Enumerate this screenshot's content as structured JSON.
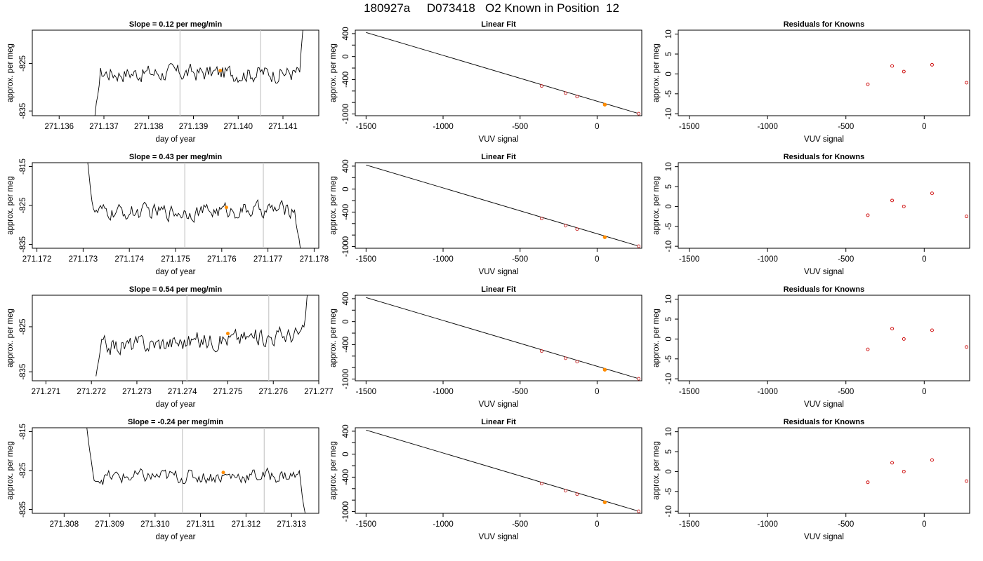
{
  "title": "180927a     D073418   O2 Known in Position  12",
  "colors": {
    "trace": "#000000",
    "known_marker": "#ff8c00",
    "fit_point": "#c82828",
    "resid_point": "#cc0000",
    "event_line": "#c8c8c8",
    "axes": "#000000"
  },
  "labels": {
    "ts_xlabel": "day of year",
    "ylabel": "approx. per meg",
    "fit_title": "Linear Fit",
    "resid_title": "Residuals for Knowns",
    "vuv_xlabel": "VUV signal"
  },
  "chart_data": [
    {
      "type": "line",
      "panel": "timeseries",
      "row": 1,
      "title": "Slope =  0.12  per meg/min",
      "xlabel": "day of year",
      "ylabel": "approx. per meg",
      "xlim": [
        271.1354,
        271.1418
      ],
      "ylim": [
        -836,
        -818
      ],
      "xticks": [
        271.136,
        271.137,
        271.138,
        271.139,
        271.14,
        271.141
      ],
      "xtick_labels": [
        "271.136",
        "271.137",
        "271.138",
        "271.139",
        "271.140",
        "271.141"
      ],
      "yticks": [
        -825,
        -835
      ],
      "ytick_labels": [
        "-825",
        "-835"
      ],
      "trace": {
        "start": 271.1368,
        "end": 271.1415,
        "base": -827,
        "noise": 1.6,
        "trend": 0.0,
        "head": -836,
        "tail": -812
      },
      "vlines": [
        271.1387,
        271.1405
      ],
      "known_point": [
        271.1396,
        -826.5
      ]
    },
    {
      "type": "line",
      "panel": "timeseries",
      "row": 2,
      "title": "Slope =  0.43  per meg/min",
      "xlabel": "day of year",
      "ylabel": "approx. per meg",
      "xlim": [
        271.1719,
        271.1781
      ],
      "ylim": [
        -836,
        -814
      ],
      "xticks": [
        271.172,
        271.173,
        271.174,
        271.175,
        271.176,
        271.177,
        271.178
      ],
      "xtick_labels": [
        "271.172",
        "271.173",
        "271.174",
        "271.175",
        "271.176",
        "271.177",
        "271.178"
      ],
      "yticks": [
        -815,
        -825,
        -835
      ],
      "ytick_labels": [
        "-815",
        "-825",
        "-835"
      ],
      "trace": {
        "start": 271.1731,
        "end": 271.1777,
        "base": -826.5,
        "noise": 1.8,
        "trend": 1.0,
        "head": -814,
        "tail": -836
      },
      "vlines": [
        271.1752,
        271.1769
      ],
      "known_point": [
        271.1761,
        -825.5
      ]
    },
    {
      "type": "line",
      "panel": "timeseries",
      "row": 3,
      "title": "Slope =  0.54  per meg/min",
      "xlabel": "day of year",
      "ylabel": "approx. per meg",
      "xlim": [
        271.2707,
        271.277
      ],
      "ylim": [
        -837,
        -818
      ],
      "xticks": [
        271.271,
        271.272,
        271.273,
        271.274,
        271.275,
        271.276,
        271.277
      ],
      "xtick_labels": [
        "271.271",
        "271.272",
        "271.273",
        "271.274",
        "271.275",
        "271.276",
        "271.277"
      ],
      "yticks": [
        -825,
        -835
      ],
      "ytick_labels": [
        "-825",
        "-835"
      ],
      "trace": {
        "start": 271.2721,
        "end": 271.2768,
        "base": -828,
        "noise": 1.8,
        "trend": 3.0,
        "head": -836,
        "tail": -812
      },
      "vlines": [
        271.2741,
        271.2759
      ],
      "known_point": [
        271.275,
        -826.5
      ]
    },
    {
      "type": "line",
      "panel": "timeseries",
      "row": 4,
      "title": "Slope =  -0.24  per meg/min",
      "xlabel": "day of year",
      "ylabel": "approx. per meg",
      "xlim": [
        271.3073,
        271.3136
      ],
      "ylim": [
        -836,
        -814
      ],
      "xticks": [
        271.308,
        271.309,
        271.31,
        271.311,
        271.312,
        271.313
      ],
      "xtick_labels": [
        "271.308",
        "271.309",
        "271.310",
        "271.311",
        "271.312",
        "271.313"
      ],
      "yticks": [
        -815,
        -825,
        -835
      ],
      "ytick_labels": [
        "-815",
        "-825",
        "-835"
      ],
      "trace": {
        "start": 271.3085,
        "end": 271.3133,
        "base": -826.5,
        "noise": 1.6,
        "trend": 0.5,
        "head": -814,
        "tail": -836
      },
      "vlines": [
        271.3106,
        271.3124
      ],
      "known_point": [
        271.3115,
        -825.5
      ]
    },
    {
      "type": "scatter",
      "panel": "fit",
      "row": 1,
      "title": "Linear Fit",
      "xlabel": "VUV signal",
      "ylabel": "approx. per meg",
      "xlim": [
        -1570,
        290
      ],
      "ylim": [
        -1030,
        460
      ],
      "xticks": [
        -1500,
        -1000,
        -500,
        0
      ],
      "yticks": [
        400,
        0,
        -400,
        -1000
      ],
      "fit_line": [
        [
          -1500,
          420
        ],
        [
          260,
          -985
        ]
      ],
      "points": [
        [
          -360,
          -512
        ],
        [
          -205,
          -637
        ],
        [
          -130,
          -697
        ],
        [
          270,
          -995
        ]
      ],
      "known_point": [
        50,
        -837
      ]
    },
    {
      "type": "scatter",
      "panel": "fit",
      "row": 2,
      "title": "Linear Fit",
      "xlabel": "VUV signal",
      "ylabel": "approx. per meg",
      "xlim": [
        -1570,
        290
      ],
      "ylim": [
        -1030,
        460
      ],
      "xticks": [
        -1500,
        -1000,
        -500,
        0
      ],
      "yticks": [
        400,
        0,
        -400,
        -1000
      ],
      "fit_line": [
        [
          -1500,
          420
        ],
        [
          260,
          -985
        ]
      ],
      "points": [
        [
          -360,
          -512
        ],
        [
          -205,
          -637
        ],
        [
          -130,
          -697
        ],
        [
          270,
          -995
        ]
      ],
      "known_point": [
        50,
        -837
      ]
    },
    {
      "type": "scatter",
      "panel": "fit",
      "row": 3,
      "title": "Linear Fit",
      "xlabel": "VUV signal",
      "ylabel": "approx. per meg",
      "xlim": [
        -1570,
        290
      ],
      "ylim": [
        -1030,
        460
      ],
      "xticks": [
        -1500,
        -1000,
        -500,
        0
      ],
      "yticks": [
        400,
        0,
        -400,
        -1000
      ],
      "fit_line": [
        [
          -1500,
          420
        ],
        [
          260,
          -985
        ]
      ],
      "points": [
        [
          -360,
          -512
        ],
        [
          -205,
          -637
        ],
        [
          -130,
          -697
        ],
        [
          270,
          -995
        ]
      ],
      "known_point": [
        50,
        -837
      ]
    },
    {
      "type": "scatter",
      "panel": "fit",
      "row": 4,
      "title": "Linear Fit",
      "xlabel": "VUV signal",
      "ylabel": "approx. per meg",
      "xlim": [
        -1570,
        290
      ],
      "ylim": [
        -1030,
        460
      ],
      "xticks": [
        -1500,
        -1000,
        -500,
        0
      ],
      "yticks": [
        400,
        0,
        -400,
        -1000
      ],
      "fit_line": [
        [
          -1500,
          420
        ],
        [
          260,
          -985
        ]
      ],
      "points": [
        [
          -360,
          -512
        ],
        [
          -205,
          -637
        ],
        [
          -130,
          -697
        ],
        [
          270,
          -995
        ]
      ],
      "known_point": [
        50,
        -837
      ]
    },
    {
      "type": "scatter",
      "panel": "residuals",
      "row": 1,
      "title": "Residuals for Knowns",
      "xlabel": "VUV signal",
      "ylabel": "approx. per meg",
      "xlim": [
        -1570,
        290
      ],
      "ylim": [
        -10.5,
        11
      ],
      "xticks": [
        -1500,
        -1000,
        -500,
        0
      ],
      "yticks": [
        10,
        5,
        0,
        -5,
        -10
      ],
      "points": [
        [
          -360,
          -2.6
        ],
        [
          -205,
          2.0
        ],
        [
          -130,
          0.6
        ],
        [
          50,
          2.3
        ],
        [
          270,
          -2.2
        ]
      ]
    },
    {
      "type": "scatter",
      "panel": "residuals",
      "row": 2,
      "title": "Residuals for Knowns",
      "xlabel": "VUV signal",
      "ylabel": "approx. per meg",
      "xlim": [
        -1570,
        290
      ],
      "ylim": [
        -10.5,
        11
      ],
      "xticks": [
        -1500,
        -1000,
        -500,
        0
      ],
      "yticks": [
        10,
        5,
        0,
        -5,
        -10
      ],
      "points": [
        [
          -360,
          -2.2
        ],
        [
          -205,
          1.5
        ],
        [
          -130,
          0.0
        ],
        [
          50,
          3.3
        ],
        [
          270,
          -2.5
        ]
      ]
    },
    {
      "type": "scatter",
      "panel": "residuals",
      "row": 3,
      "title": "Residuals for Knowns",
      "xlabel": "VUV signal",
      "ylabel": "approx. per meg",
      "xlim": [
        -1570,
        290
      ],
      "ylim": [
        -10.5,
        11
      ],
      "xticks": [
        -1500,
        -1000,
        -500,
        0
      ],
      "yticks": [
        10,
        5,
        0,
        -5,
        -10
      ],
      "points": [
        [
          -360,
          -2.6
        ],
        [
          -205,
          2.6
        ],
        [
          -130,
          0.0
        ],
        [
          50,
          2.2
        ],
        [
          270,
          -2.0
        ]
      ]
    },
    {
      "type": "scatter",
      "panel": "residuals",
      "row": 4,
      "title": "Residuals for Knowns",
      "xlabel": "VUV signal",
      "ylabel": "approx. per meg",
      "xlim": [
        -1570,
        290
      ],
      "ylim": [
        -10.5,
        11
      ],
      "xticks": [
        -1500,
        -1000,
        -500,
        0
      ],
      "yticks": [
        10,
        5,
        0,
        -5,
        -10
      ],
      "points": [
        [
          -360,
          -2.7
        ],
        [
          -205,
          2.2
        ],
        [
          -130,
          0.0
        ],
        [
          50,
          2.9
        ],
        [
          270,
          -2.4
        ]
      ]
    }
  ]
}
